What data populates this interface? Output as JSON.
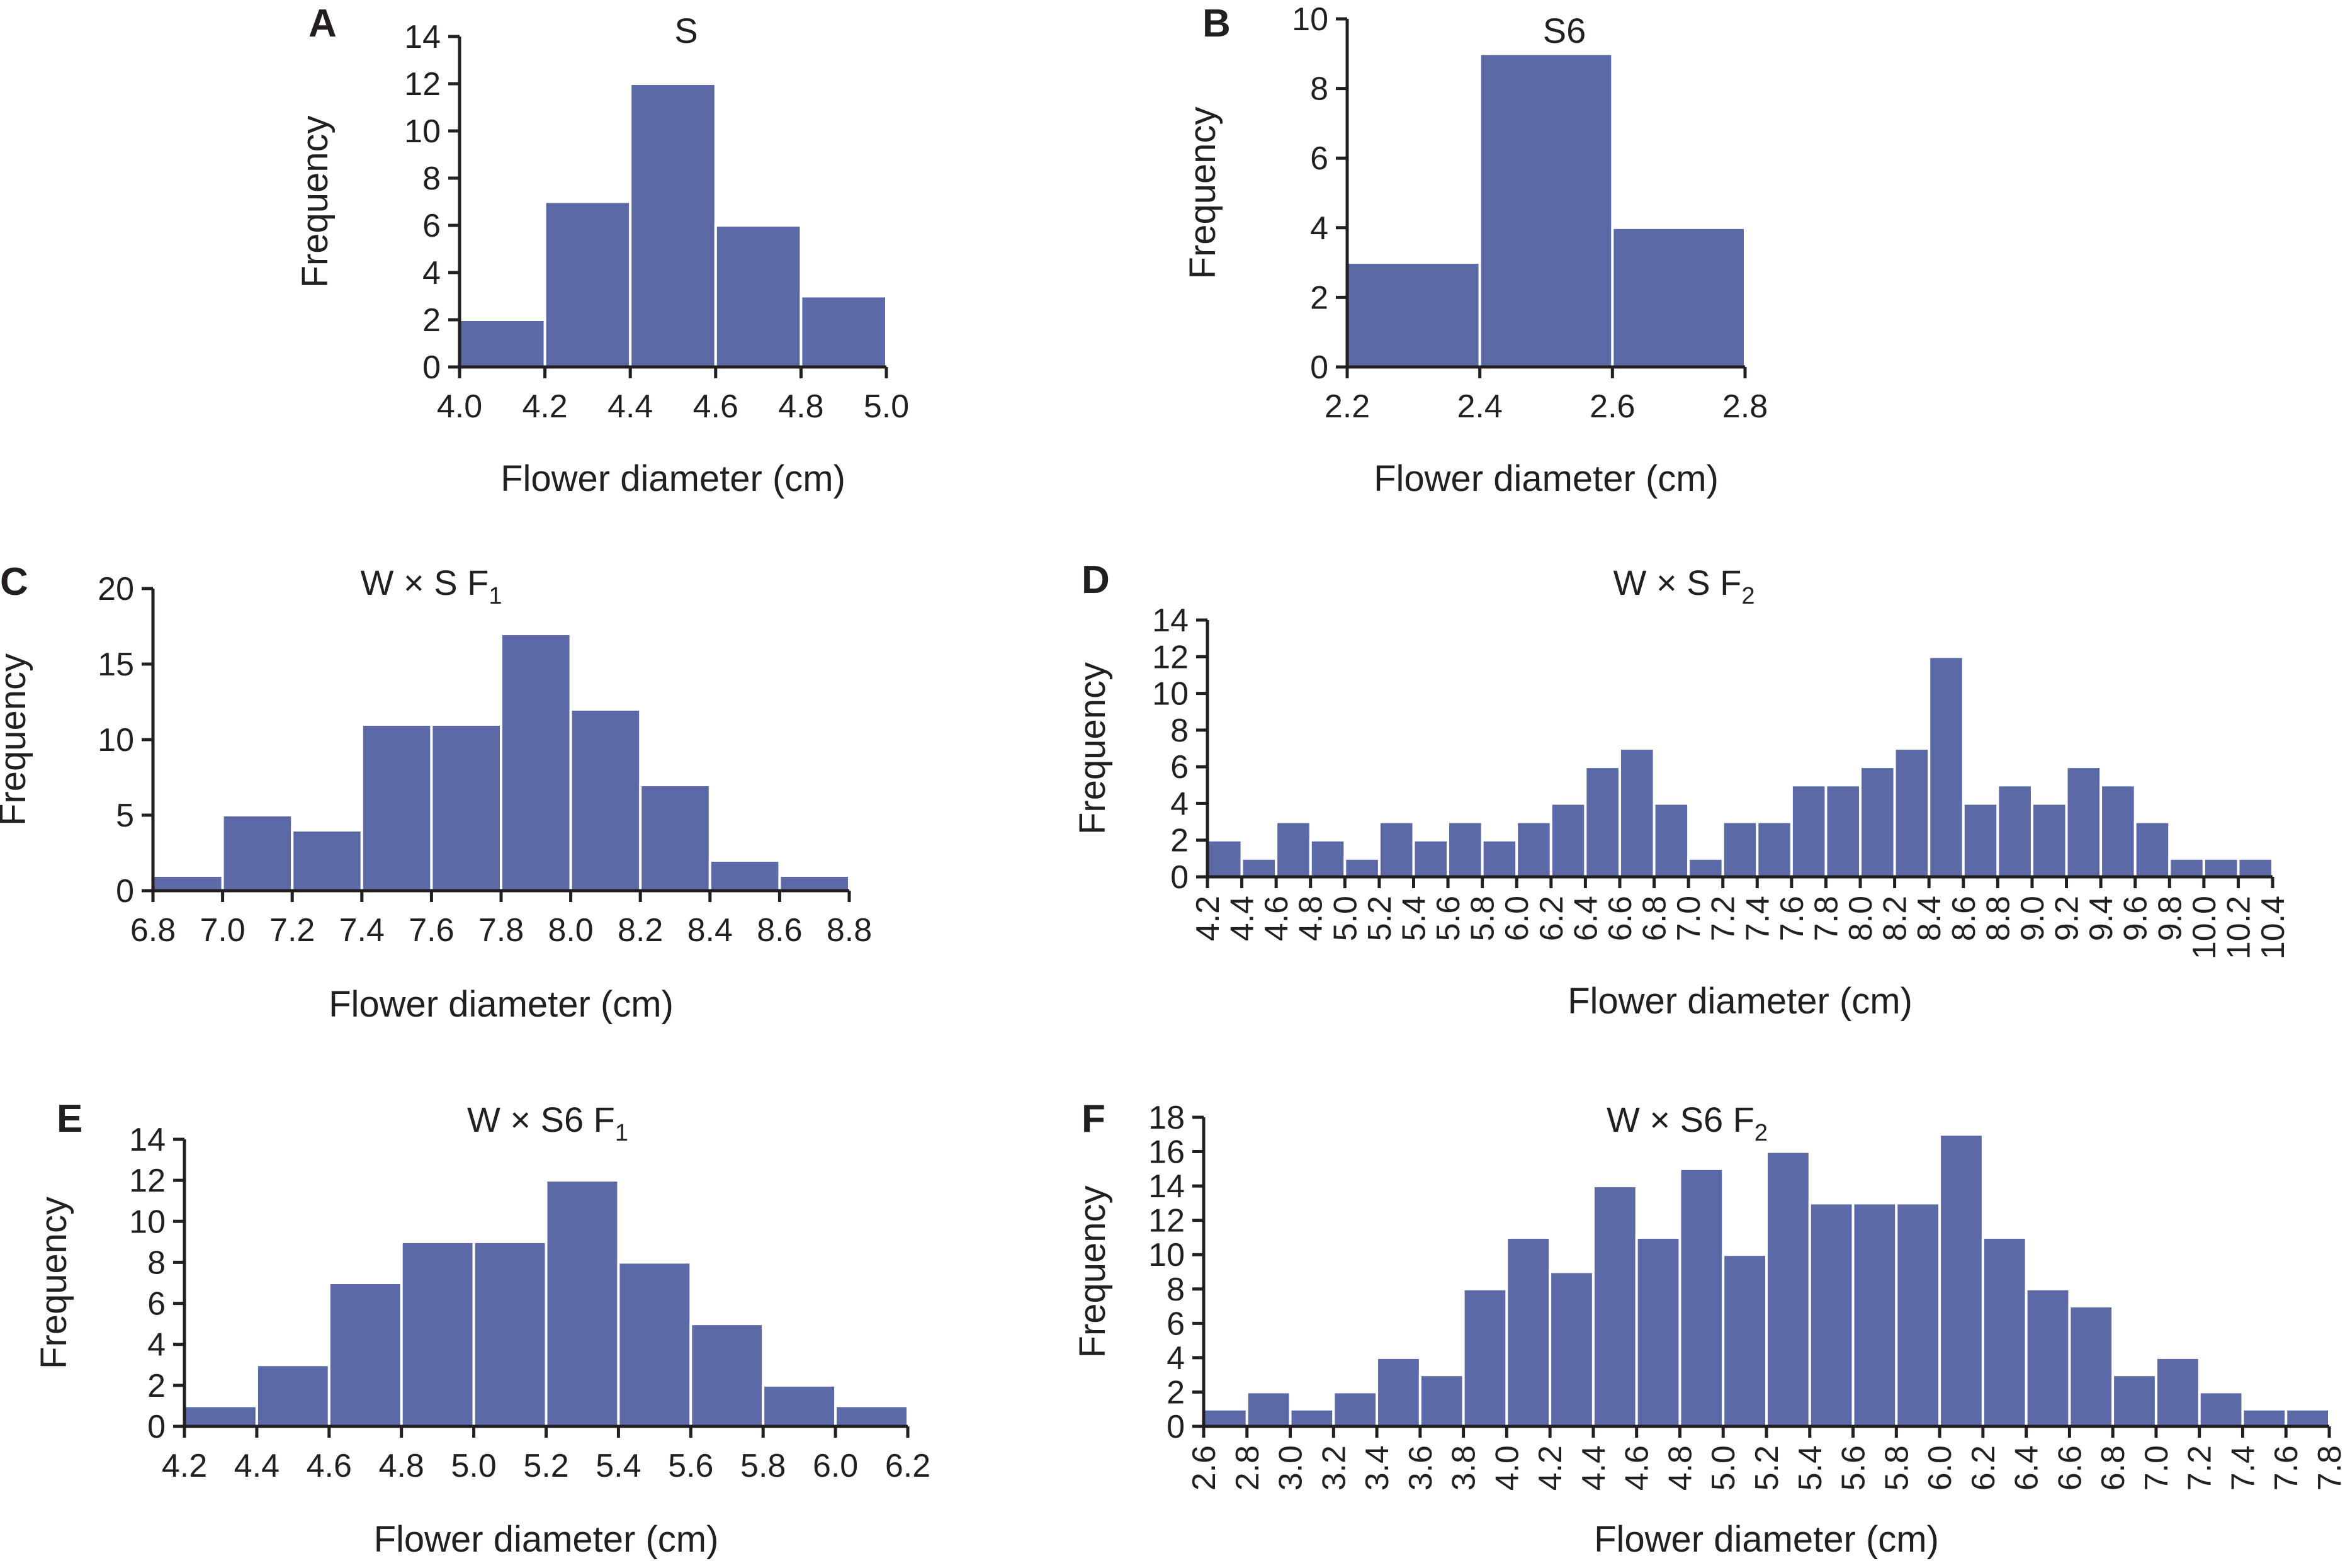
{
  "colors": {
    "bar": "#5b6aa6",
    "axis": "#231f20",
    "text": "#231f20"
  },
  "chart_data": [
    {
      "label": "A",
      "type": "bar",
      "title": "S",
      "title_sub": "",
      "xlabel": "Flower diameter (cm)",
      "ylabel": "Frequency",
      "bin_edges": [
        4.0,
        4.2,
        4.4,
        4.6,
        4.8,
        5.0
      ],
      "values": [
        2,
        7,
        12,
        6,
        3
      ],
      "xticks": [
        "4.0",
        "4.2",
        "4.4",
        "4.6",
        "4.8",
        "5.0"
      ],
      "yticks": [
        "0",
        "2",
        "4",
        "6",
        "8",
        "10",
        "12",
        "14"
      ],
      "ylim": [
        0,
        14
      ]
    },
    {
      "label": "B",
      "type": "bar",
      "title": "S6",
      "title_sub": "",
      "xlabel": "Flower diameter (cm)",
      "ylabel": "Frequency",
      "bin_edges": [
        2.2,
        2.4,
        2.6,
        2.8
      ],
      "values": [
        3,
        9,
        4
      ],
      "xticks": [
        "2.2",
        "2.4",
        "2.6",
        "2.8"
      ],
      "yticks": [
        "0",
        "2",
        "4",
        "6",
        "8",
        "10"
      ],
      "ylim": [
        0,
        10
      ]
    },
    {
      "label": "C",
      "type": "bar",
      "title": "W × S F",
      "title_sub": "1",
      "xlabel": "Flower diameter (cm)",
      "ylabel": "Frequency",
      "bin_edges": [
        6.8,
        7.0,
        7.2,
        7.4,
        7.6,
        7.8,
        8.0,
        8.2,
        8.4,
        8.6,
        8.8
      ],
      "values": [
        1,
        5,
        4,
        11,
        11,
        17,
        12,
        7,
        2,
        1
      ],
      "xticks": [
        "6.8",
        "7.0",
        "7.2",
        "7.4",
        "7.6",
        "7.8",
        "8.0",
        "8.2",
        "8.4",
        "8.6",
        "8.8"
      ],
      "yticks": [
        "0",
        "5",
        "10",
        "15",
        "20"
      ],
      "ylim": [
        0,
        20
      ]
    },
    {
      "label": "D",
      "type": "bar",
      "title": "W × S F",
      "title_sub": "2",
      "xlabel": "Flower diameter (cm)",
      "ylabel": "Frequency",
      "bin_edges": [
        4.2,
        4.4,
        4.6,
        4.8,
        5.0,
        5.2,
        5.4,
        5.6,
        5.8,
        6.0,
        6.2,
        6.4,
        6.6,
        6.8,
        7.0,
        7.2,
        7.4,
        7.6,
        7.8,
        8.0,
        8.2,
        8.4,
        8.6,
        8.8,
        9.0,
        9.2,
        9.4,
        9.6,
        9.8,
        10.0,
        10.2,
        10.4
      ],
      "values": [
        2,
        1,
        3,
        2,
        1,
        3,
        2,
        3,
        2,
        3,
        4,
        6,
        7,
        4,
        1,
        3,
        3,
        5,
        5,
        6,
        7,
        12,
        4,
        5,
        4,
        6,
        5,
        3,
        1,
        1,
        1
      ],
      "xticks": [
        "4.2",
        "4.4",
        "4.6",
        "4.8",
        "5.0",
        "5.2",
        "5.4",
        "5.6",
        "5.8",
        "6.0",
        "6.2",
        "6.4",
        "6.6",
        "6.8",
        "7.0",
        "7.2",
        "7.4",
        "7.6",
        "7.8",
        "8.0",
        "8.2",
        "8.4",
        "8.6",
        "8.8",
        "9.0",
        "9.2",
        "9.4",
        "9.6",
        "9.8",
        "10.0",
        "10.2",
        "10.4"
      ],
      "yticks": [
        "0",
        "2",
        "4",
        "6",
        "8",
        "10",
        "12",
        "14"
      ],
      "ylim": [
        0,
        14
      ]
    },
    {
      "label": "E",
      "type": "bar",
      "title": "W × S6 F",
      "title_sub": "1",
      "xlabel": "Flower diameter (cm)",
      "ylabel": "Frequency",
      "bin_edges": [
        4.2,
        4.4,
        4.6,
        4.8,
        5.0,
        5.2,
        5.4,
        5.6,
        5.8,
        6.0,
        6.2
      ],
      "values": [
        1,
        3,
        7,
        9,
        9,
        12,
        8,
        5,
        2,
        1
      ],
      "xticks": [
        "4.2",
        "4.4",
        "4.6",
        "4.8",
        "5.0",
        "5.2",
        "5.4",
        "5.6",
        "5.8",
        "6.0",
        "6.2"
      ],
      "yticks": [
        "0",
        "2",
        "4",
        "6",
        "8",
        "10",
        "12",
        "14"
      ],
      "ylim": [
        0,
        14
      ]
    },
    {
      "label": "F",
      "type": "bar",
      "title": "W × S6 F",
      "title_sub": "2",
      "xlabel": "Flower diameter (cm)",
      "ylabel": "Frequency",
      "bin_edges": [
        2.6,
        2.8,
        3.0,
        3.2,
        3.4,
        3.6,
        3.8,
        4.0,
        4.2,
        4.4,
        4.6,
        4.8,
        5.0,
        5.2,
        5.4,
        5.6,
        5.8,
        6.0,
        6.2,
        6.4,
        6.6,
        6.8,
        7.0,
        7.2,
        7.4,
        7.6,
        7.8
      ],
      "values": [
        1,
        2,
        1,
        2,
        4,
        3,
        8,
        11,
        9,
        14,
        11,
        15,
        10,
        16,
        13,
        13,
        13,
        17,
        11,
        8,
        7,
        3,
        4,
        2,
        1,
        1
      ],
      "xticks": [
        "2.6",
        "2.8",
        "3.0",
        "3.2",
        "3.4",
        "3.6",
        "3.8",
        "4.0",
        "4.2",
        "4.4",
        "4.6",
        "4.8",
        "5.0",
        "5.2",
        "5.4",
        "5.6",
        "5.8",
        "6.0",
        "6.2",
        "6.4",
        "6.6",
        "6.8",
        "7.0",
        "7.2",
        "7.4",
        "7.6",
        "7.8"
      ],
      "yticks": [
        "0",
        "2",
        "4",
        "6",
        "8",
        "10",
        "12",
        "14",
        "16",
        "18"
      ],
      "ylim": [
        0,
        18
      ]
    }
  ]
}
